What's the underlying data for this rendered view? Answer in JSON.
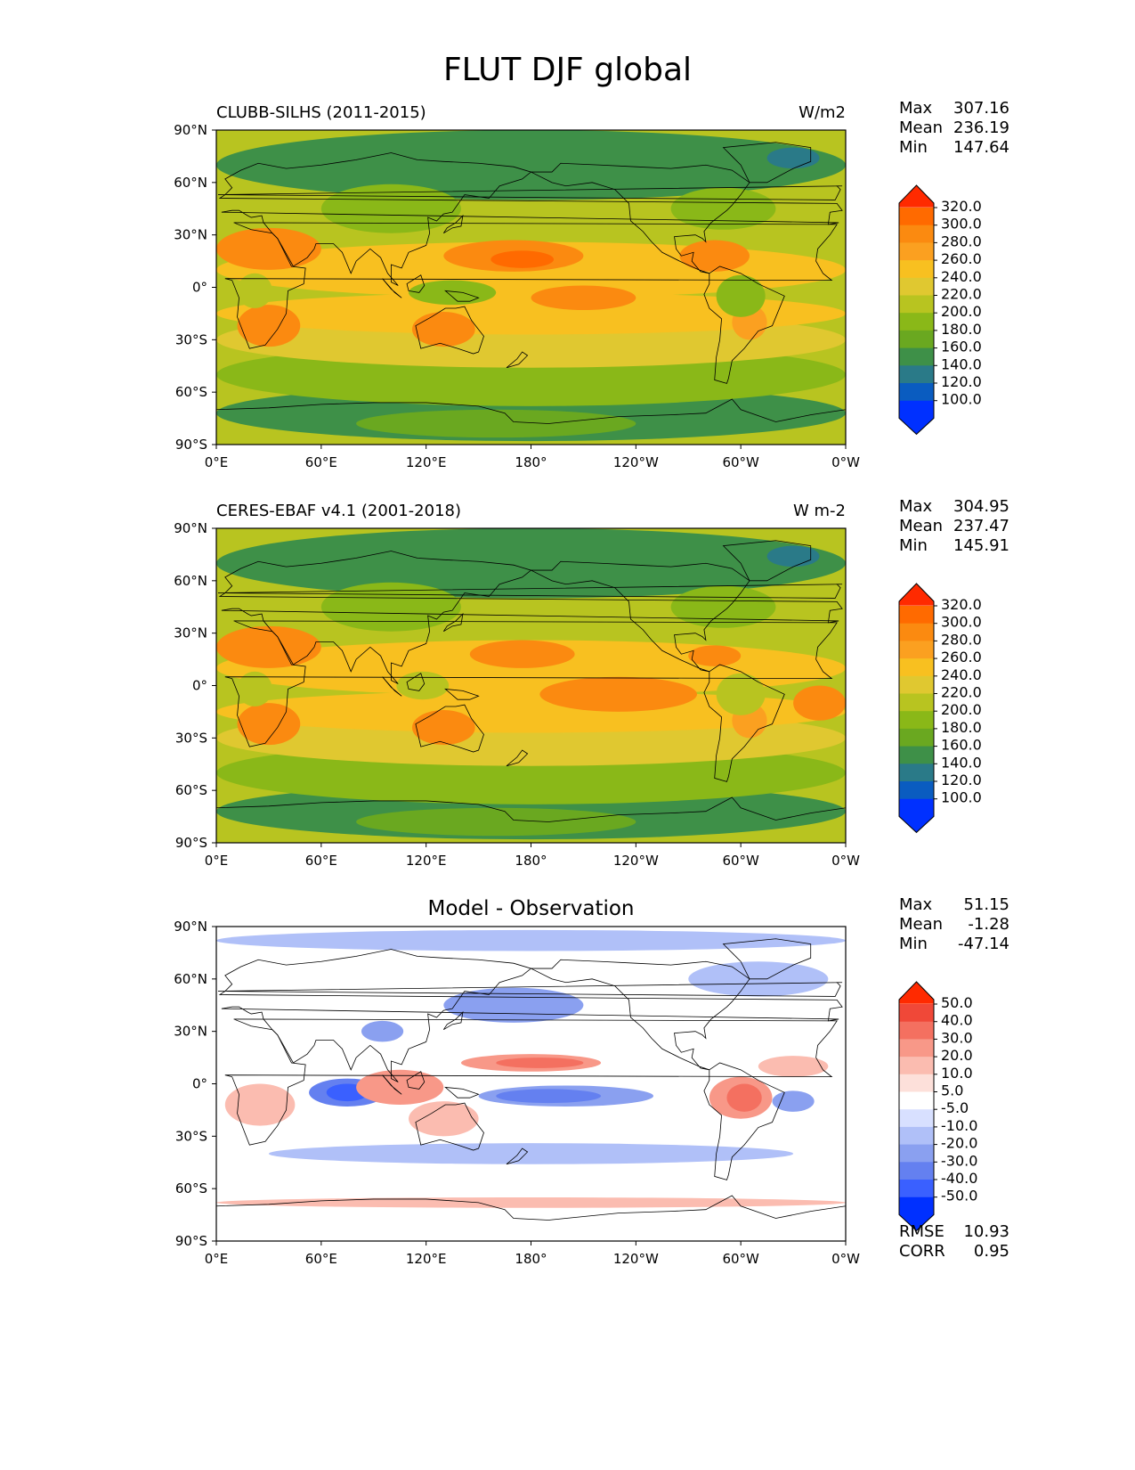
{
  "figure_title": "FLUT DJF global",
  "x_ticks": [
    "0°E",
    "60°E",
    "120°E",
    "180°",
    "120°W",
    "60°W",
    "0°W"
  ],
  "y_ticks": [
    "90°N",
    "60°N",
    "30°N",
    "0°",
    "30°S",
    "60°S",
    "90°S"
  ],
  "panels": [
    {
      "name": "model",
      "title_left": "CLUBB-SILHS (2011-2015)",
      "title_right": "W/m2",
      "title_center": "",
      "stats": [
        {
          "label": "Max",
          "value": "307.16"
        },
        {
          "label": "Mean",
          "value": "236.19"
        },
        {
          "label": "Min",
          "value": "147.64"
        }
      ],
      "colorbar": {
        "levels": [
          "320.0",
          "300.0",
          "280.0",
          "260.0",
          "240.0",
          "220.0",
          "200.0",
          "180.0",
          "160.0",
          "140.0",
          "120.0",
          "100.0"
        ],
        "colors": [
          "#ff2a00",
          "#ff6a00",
          "#fb8a10",
          "#fba020",
          "#f8c020",
          "#e0c830",
          "#b8c420",
          "#8ab818",
          "#6aa820",
          "#3e9048",
          "#2a7a88",
          "#0a5cc0",
          "#0030ff"
        ]
      }
    },
    {
      "name": "observation",
      "title_left": "CERES-EBAF v4.1 (2001-2018)",
      "title_right": "W m-2",
      "title_center": "",
      "stats": [
        {
          "label": "Max",
          "value": "304.95"
        },
        {
          "label": "Mean",
          "value": "237.47"
        },
        {
          "label": "Min",
          "value": "145.91"
        }
      ],
      "colorbar": {
        "levels": [
          "320.0",
          "300.0",
          "280.0",
          "260.0",
          "240.0",
          "220.0",
          "200.0",
          "180.0",
          "160.0",
          "140.0",
          "120.0",
          "100.0"
        ],
        "colors": [
          "#ff2a00",
          "#ff6a00",
          "#fb8a10",
          "#fba020",
          "#f8c020",
          "#e0c830",
          "#b8c420",
          "#8ab818",
          "#6aa820",
          "#3e9048",
          "#2a7a88",
          "#0a5cc0",
          "#0030ff"
        ]
      }
    },
    {
      "name": "difference",
      "title_left": "",
      "title_right": "",
      "title_center": "Model - Observation",
      "stats": [
        {
          "label": "Max",
          "value": "51.15"
        },
        {
          "label": "Mean",
          "value": "-1.28"
        },
        {
          "label": "Min",
          "value": "-47.14"
        }
      ],
      "colorbar": {
        "levels": [
          "50.0",
          "40.0",
          "30.0",
          "20.0",
          "10.0",
          "5.0",
          "-5.0",
          "-10.0",
          "-20.0",
          "-30.0",
          "-40.0",
          "-50.0"
        ],
        "colors": [
          "#ff2a00",
          "#f04838",
          "#f47060",
          "#f89888",
          "#fbbcb0",
          "#fde0da",
          "#ffffff",
          "#d8e0ff",
          "#b0c0f8",
          "#8aa0f0",
          "#6480f0",
          "#3a60ff",
          "#0030ff"
        ]
      },
      "footer_stats": [
        {
          "label": "RMSE",
          "value": "10.93"
        },
        {
          "label": "CORR",
          "value": "0.95"
        }
      ]
    }
  ]
}
